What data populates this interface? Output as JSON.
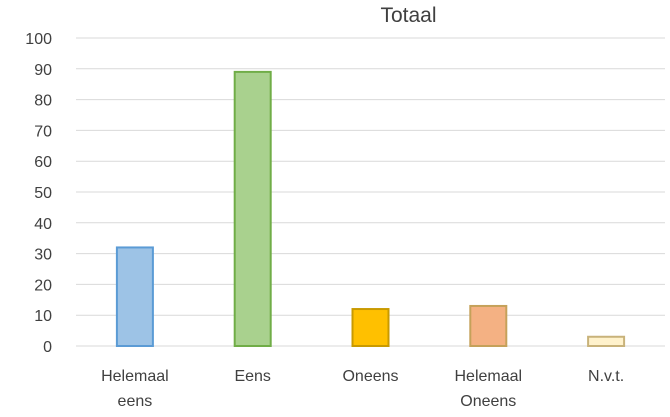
{
  "chart_data": {
    "type": "bar",
    "title": "Totaal",
    "categories": [
      [
        "Helemaal",
        "eens"
      ],
      [
        "Eens"
      ],
      [
        "Oneens"
      ],
      [
        "Helemaal",
        "Oneens"
      ],
      [
        "N.v.t."
      ]
    ],
    "values": [
      32,
      89,
      12,
      13,
      3
    ],
    "colors": [
      {
        "fill": "#9dc3e6",
        "stroke": "#5b9bd5"
      },
      {
        "fill": "#a9d18e",
        "stroke": "#70ad47"
      },
      {
        "fill": "#ffc000",
        "stroke": "#c99a00"
      },
      {
        "fill": "#f4b183",
        "stroke": "#c5a15a"
      },
      {
        "fill": "#fff2cc",
        "stroke": "#c8b27a"
      }
    ],
    "ylim": [
      0,
      100
    ],
    "yticks": [
      0,
      10,
      20,
      30,
      40,
      50,
      60,
      70,
      80,
      90,
      100
    ],
    "grid": true,
    "legend": "none",
    "gridline_color": "#d9d9d9"
  }
}
